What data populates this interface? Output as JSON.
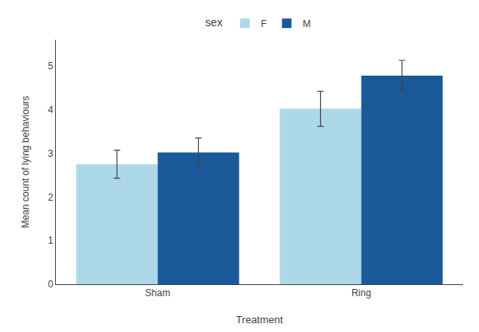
{
  "chart_data": {
    "type": "bar",
    "categories": [
      "Sham",
      "Ring"
    ],
    "xlabel": "Treatment",
    "ylabel": "Mean count of lying behaviours",
    "legend_title": "sex",
    "series": [
      {
        "name": "F",
        "color": "#add8e8",
        "values": [
          2.75,
          4.02
        ],
        "errors": [
          0.32,
          0.4
        ]
      },
      {
        "name": "M",
        "color": "#1b5a9a",
        "values": [
          3.02,
          4.78
        ],
        "errors": [
          0.33,
          0.35
        ]
      }
    ],
    "ylim": [
      0,
      5.6
    ],
    "yticks": [
      0,
      1,
      2,
      3,
      4,
      5
    ],
    "grid": false,
    "legend": "top"
  }
}
